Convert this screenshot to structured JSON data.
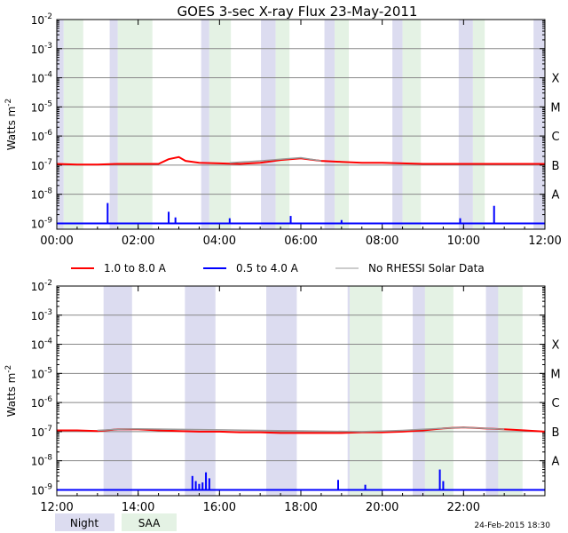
{
  "chart_data": [
    {
      "type": "line",
      "title": "GOES 3-sec X-ray Flux   23-May-2011",
      "ylabel": "Watts m",
      "ylabel_sup": "-2",
      "yscale": "log",
      "ylim": [
        -9.2,
        -2
      ],
      "xlim": [
        "00:00",
        "12:00"
      ],
      "x_ticks": [
        "00:00",
        "02:00",
        "04:00",
        "06:00",
        "08:00",
        "10:00",
        "12:00"
      ],
      "y_ticks": [
        {
          "base": "10",
          "exp": "-2"
        },
        {
          "base": "10",
          "exp": "-3"
        },
        {
          "base": "10",
          "exp": "-4"
        },
        {
          "base": "10",
          "exp": "-5"
        },
        {
          "base": "10",
          "exp": "-6"
        },
        {
          "base": "10",
          "exp": "-7"
        },
        {
          "base": "10",
          "exp": "-8"
        },
        {
          "base": "10",
          "exp": "-9"
        }
      ],
      "class_labels": [
        "X",
        "M",
        "C",
        "B",
        "A"
      ],
      "night_bands": [
        [
          0.0,
          0.17
        ],
        [
          1.3,
          1.5
        ],
        [
          3.55,
          3.75
        ],
        [
          5.02,
          5.38
        ],
        [
          6.58,
          6.83
        ],
        [
          8.25,
          8.5
        ],
        [
          9.88,
          10.23
        ],
        [
          11.72,
          12.0
        ]
      ],
      "saa_bands": [
        [
          0.17,
          0.65
        ],
        [
          1.5,
          2.35
        ],
        [
          3.75,
          4.28
        ],
        [
          5.38,
          5.72
        ],
        [
          6.83,
          7.18
        ],
        [
          8.5,
          8.95
        ],
        [
          10.23,
          10.52
        ]
      ],
      "series": [
        {
          "name": "1.0 to 8.0 A",
          "color": "#ff0000",
          "x": [
            "00:00",
            "00:30",
            "01:00",
            "01:30",
            "02:00",
            "02:30",
            "02:45",
            "03:00",
            "03:10",
            "03:30",
            "04:00",
            "04:30",
            "05:00",
            "05:30",
            "06:00",
            "06:30",
            "07:00",
            "07:30",
            "08:00",
            "08:30",
            "09:00",
            "09:30",
            "10:00",
            "10:30",
            "11:00",
            "11:30",
            "12:00"
          ],
          "y": [
            1.1e-07,
            1.05e-07,
            1.05e-07,
            1.1e-07,
            1.1e-07,
            1.1e-07,
            1.6e-07,
            1.9e-07,
            1.4e-07,
            1.2e-07,
            1.15e-07,
            1.1e-07,
            1.2e-07,
            1.5e-07,
            1.7e-07,
            1.4e-07,
            1.3e-07,
            1.2e-07,
            1.2e-07,
            1.15e-07,
            1.1e-07,
            1.1e-07,
            1.1e-07,
            1.1e-07,
            1.1e-07,
            1.1e-07,
            1.1e-07
          ]
        },
        {
          "name": "0.5 to 4.0 A",
          "color": "#0000ff",
          "x": [
            "00:00",
            "01:15",
            "01:16",
            "02:45",
            "02:55",
            "04:15",
            "05:45",
            "07:00",
            "09:55",
            "10:45",
            "12:00"
          ],
          "y": [
            1e-09,
            5e-09,
            1e-09,
            2.5e-09,
            1.6e-09,
            1.5e-09,
            1.8e-09,
            1.3e-09,
            1.5e-09,
            4e-09,
            1e-09
          ]
        },
        {
          "name": "No RHESSI Solar Data",
          "color": "#999999",
          "x": [
            "04:15",
            "05:00",
            "05:30",
            "06:00",
            "06:30"
          ],
          "y": [
            1.2e-07,
            1.4e-07,
            1.6e-07,
            1.8e-07,
            1.4e-07
          ]
        }
      ]
    },
    {
      "type": "line",
      "title": "",
      "ylabel": "Watts m",
      "ylabel_sup": "-2",
      "yscale": "log",
      "ylim": [
        -9.2,
        -2
      ],
      "xlim": [
        "12:00",
        "24:00"
      ],
      "x_ticks": [
        "12:00",
        "14:00",
        "16:00",
        "18:00",
        "20:00",
        "22:00",
        ""
      ],
      "y_ticks": [
        {
          "base": "10",
          "exp": "-2"
        },
        {
          "base": "10",
          "exp": "-3"
        },
        {
          "base": "10",
          "exp": "-4"
        },
        {
          "base": "10",
          "exp": "-5"
        },
        {
          "base": "10",
          "exp": "-6"
        },
        {
          "base": "10",
          "exp": "-7"
        },
        {
          "base": "10",
          "exp": "-8"
        },
        {
          "base": "10",
          "exp": "-9"
        }
      ],
      "class_labels": [
        "X",
        "M",
        "C",
        "B",
        "A"
      ],
      "night_bands": [
        [
          13.15,
          13.85
        ],
        [
          15.15,
          15.9
        ],
        [
          17.15,
          17.9
        ],
        [
          19.15,
          19.9
        ],
        [
          20.75,
          21.4
        ],
        [
          22.55,
          23.15
        ]
      ],
      "saa_bands": [
        [
          19.2,
          20.0
        ],
        [
          21.05,
          21.75
        ],
        [
          22.85,
          23.45
        ]
      ],
      "series": [
        {
          "name": "1.0 to 8.0 A",
          "color": "#ff0000",
          "x": [
            "12:00",
            "12:30",
            "13:00",
            "13:30",
            "14:00",
            "14:30",
            "15:00",
            "15:30",
            "16:00",
            "16:30",
            "17:00",
            "17:30",
            "18:00",
            "18:30",
            "19:00",
            "19:30",
            "20:00",
            "20:30",
            "21:00",
            "21:30",
            "22:00",
            "22:30",
            "23:00",
            "23:30",
            "24:00"
          ],
          "y": [
            1.1e-07,
            1.1e-07,
            1.05e-07,
            1.2e-07,
            1.2e-07,
            1.1e-07,
            1.05e-07,
            1e-07,
            1e-07,
            9.5e-08,
            9.5e-08,
            9e-08,
            9e-08,
            9e-08,
            9e-08,
            9.5e-08,
            9.5e-08,
            1e-07,
            1.1e-07,
            1.3e-07,
            1.4e-07,
            1.3e-07,
            1.2e-07,
            1.1e-07,
            1e-07
          ]
        },
        {
          "name": "0.5 to 4.0 A",
          "color": "#0000ff",
          "x": [
            "12:00",
            "15:20",
            "15:25",
            "15:30",
            "15:35",
            "15:40",
            "15:45",
            "18:55",
            "19:35",
            "21:25",
            "21:30",
            "24:00"
          ],
          "y": [
            1e-09,
            3e-09,
            2e-09,
            1.6e-09,
            1.8e-09,
            4e-09,
            2.5e-09,
            2.2e-09,
            1.5e-09,
            5e-09,
            2e-09,
            1e-09
          ]
        },
        {
          "name": "No RHESSI Solar Data",
          "color": "#999999",
          "x": [
            "13:00",
            "13:30",
            "14:00",
            "19:30",
            "20:00",
            "20:30",
            "21:00",
            "22:00",
            "23:00"
          ],
          "y": [
            1.1e-07,
            1.2e-07,
            1.25e-07,
            1e-07,
            1.05e-07,
            1.1e-07,
            1.2e-07,
            1.4e-07,
            1.2e-07
          ]
        }
      ]
    }
  ],
  "legend": {
    "items": [
      {
        "label": "1.0 to 8.0 A",
        "color": "#ff0000"
      },
      {
        "label": "0.5 to 4.0 A",
        "color": "#0000ff"
      },
      {
        "label": "No RHESSI Solar Data",
        "color": "#999999"
      }
    ]
  },
  "footer": {
    "night_label": "Night",
    "saa_label": "SAA",
    "timestamp": "24-Feb-2015 18:30"
  },
  "colors": {
    "night": "#dcdcf0",
    "saa": "#e4f2e4",
    "grid": "#888888"
  }
}
